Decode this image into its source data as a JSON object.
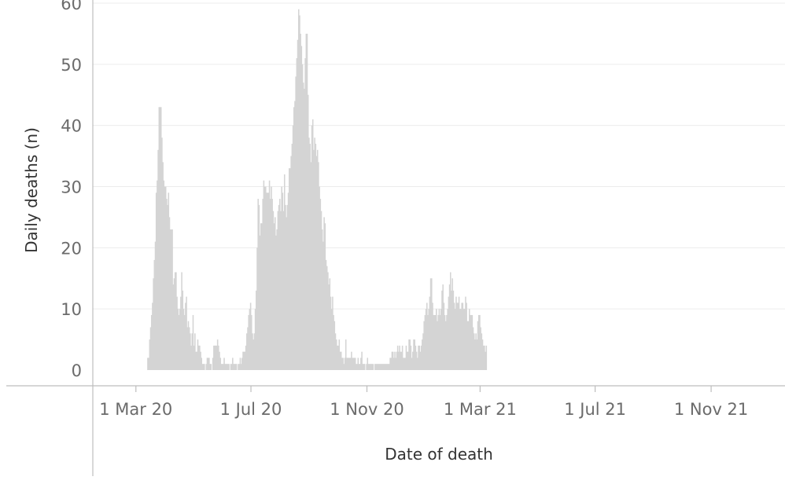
{
  "chart_data": {
    "type": "bar",
    "xlabel": "Date of death",
    "ylabel": "Daily deaths (n)",
    "ylim": [
      0,
      60
    ],
    "y_ticks": [
      0,
      10,
      20,
      30,
      40,
      50,
      60
    ],
    "grid": "horizontal",
    "bar_color": "#d4d4d4",
    "x_range": [
      "2020-02-01",
      "2022-01-10"
    ],
    "x_ticks": [
      {
        "date": "2020-03-01",
        "label": "1 Mar 20"
      },
      {
        "date": "2020-07-01",
        "label": "1 Jul 20"
      },
      {
        "date": "2020-11-01",
        "label": "1 Nov 20"
      },
      {
        "date": "2021-03-01",
        "label": "1 Mar 21"
      },
      {
        "date": "2021-07-01",
        "label": "1 Jul 21"
      },
      {
        "date": "2021-11-01",
        "label": "1 Nov 21"
      }
    ],
    "series": [
      {
        "start_date": "2020-03-13",
        "values": [
          2,
          2,
          5,
          7,
          9,
          11,
          15,
          18,
          21,
          29,
          31,
          36,
          43,
          43,
          43,
          38,
          34,
          31,
          30,
          30,
          28,
          27,
          29,
          25,
          23,
          23,
          23,
          14,
          15,
          16,
          16,
          12,
          10,
          9,
          10,
          12,
          16,
          13,
          10,
          9,
          11,
          12,
          7,
          8,
          7,
          6,
          4,
          6,
          9,
          4,
          6,
          3,
          3,
          5,
          4,
          4,
          3,
          2,
          1,
          1,
          1,
          0,
          1,
          2,
          2,
          2,
          1,
          1,
          0,
          2,
          4,
          4,
          4,
          4,
          5,
          4,
          3,
          2,
          1,
          1,
          1,
          2,
          1,
          1,
          1,
          1,
          1,
          0,
          1,
          1,
          2,
          1,
          1,
          1,
          1,
          0,
          1,
          1,
          2,
          1,
          2,
          3,
          3,
          3,
          4,
          6,
          7,
          9,
          10,
          11,
          9,
          6,
          5,
          6,
          10,
          13,
          20,
          28,
          27,
          22,
          24,
          24,
          28,
          31,
          30,
          30,
          29,
          29,
          29,
          31,
          28,
          30,
          28,
          26,
          24,
          25,
          22,
          23,
          26,
          27,
          28,
          26,
          30,
          29,
          26,
          32,
          27,
          25,
          27,
          29,
          33,
          33,
          35,
          37,
          40,
          43,
          44,
          48,
          51,
          54,
          59,
          58,
          55,
          53,
          50,
          47,
          46,
          51,
          55,
          55,
          45,
          38,
          37,
          34,
          40,
          41,
          36,
          38,
          37,
          35,
          36,
          34,
          30,
          28,
          26,
          23,
          21,
          25,
          24,
          18,
          17,
          16,
          14,
          15,
          12,
          10,
          12,
          9,
          8,
          6,
          5,
          4,
          4,
          5,
          3,
          3,
          2,
          2,
          1,
          2,
          5,
          2,
          2,
          2,
          2,
          2,
          3,
          2,
          2,
          2,
          2,
          1,
          1,
          2,
          1,
          1,
          2,
          3,
          1,
          1,
          1,
          0,
          1,
          2,
          1,
          1,
          1,
          1,
          1,
          1,
          0,
          1,
          1,
          1,
          1,
          1,
          1,
          1,
          1,
          1,
          1,
          1,
          1,
          1,
          1,
          1,
          1,
          2,
          2,
          3,
          3,
          2,
          3,
          2,
          3,
          4,
          3,
          4,
          3,
          3,
          4,
          2,
          2,
          2,
          4,
          3,
          3,
          5,
          5,
          4,
          2,
          3,
          5,
          5,
          4,
          3,
          2,
          4,
          4,
          3,
          4,
          5,
          6,
          8,
          9,
          10,
          11,
          9,
          10,
          12,
          15,
          15,
          11,
          9,
          9,
          9,
          10,
          8,
          9,
          10,
          9,
          10,
          13,
          14,
          11,
          9,
          8,
          9,
          10,
          12,
          14,
          16,
          13,
          15,
          13,
          11,
          10,
          12,
          11,
          11,
          12,
          10,
          10,
          11,
          11,
          10,
          10,
          12,
          11,
          8,
          8,
          10,
          9,
          9,
          9,
          7,
          6,
          5,
          6,
          5,
          8,
          9,
          9,
          7,
          6,
          5,
          4,
          4,
          3,
          4
        ]
      }
    ]
  }
}
